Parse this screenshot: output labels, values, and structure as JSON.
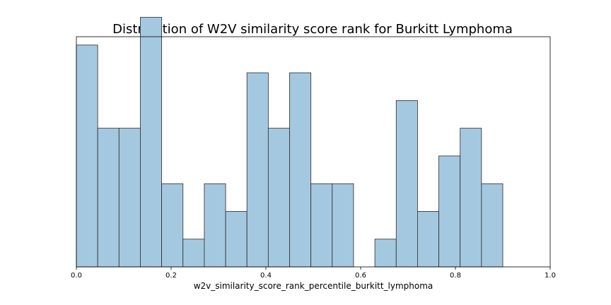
{
  "chart_data": {
    "type": "bar",
    "title": "Distribution of W2V similarity score rank for Burkitt Lymphoma",
    "xlabel": "w2v_similarity_score_rank_percentile_burkitt_lymphoma",
    "ylabel": "",
    "xlim": [
      0.0,
      1.0
    ],
    "ylim": [
      0,
      8.3
    ],
    "y_ticks_shown": false,
    "grid": false,
    "xticks": [
      "0.0",
      "0.2",
      "0.4",
      "0.6",
      "0.8",
      "1.0"
    ],
    "xtick_values": [
      0.0,
      0.2,
      0.4,
      0.6,
      0.8,
      1.0
    ],
    "bin_width": 0.045,
    "bin_edges": [
      0.0,
      0.045,
      0.09,
      0.135,
      0.18,
      0.225,
      0.27,
      0.315,
      0.36,
      0.405,
      0.45,
      0.495,
      0.54,
      0.585,
      0.63,
      0.675,
      0.72,
      0.765,
      0.81,
      0.855,
      0.9
    ],
    "values": [
      8,
      5,
      5,
      9,
      3,
      1,
      3,
      2,
      7,
      5,
      7,
      3,
      3,
      0,
      1,
      6,
      2,
      4,
      5,
      3
    ],
    "bar_color": "#a5c8e1",
    "edge_color": "#2a2a2a"
  }
}
